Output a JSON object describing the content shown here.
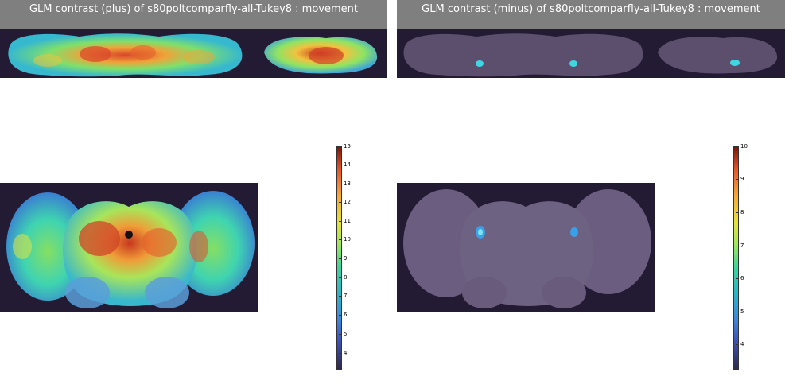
{
  "panels": {
    "plus": {
      "title": "GLM contrast (plus) of s80poltcomparfly-all-Tukey8 : movement",
      "colorbar": {
        "max_label": "15",
        "ticks": [
          "14",
          "13",
          "12",
          "11",
          "10",
          "9",
          "8",
          "7",
          "6",
          "5",
          "4"
        ]
      }
    },
    "minus": {
      "title": "GLM contrast (minus) of s80poltcomparfly-all-Tukey8 : movement",
      "colorbar": {
        "max_label": "10",
        "ticks": [
          "9",
          "8",
          "7",
          "6",
          "5",
          "4"
        ]
      }
    }
  },
  "colors": {
    "background": "#231a33",
    "header": "#7f7f7f",
    "brain_tissue": "#5c4f6e",
    "colormap": [
      "#2e2a4a",
      "#3e4fb0",
      "#3f86d8",
      "#2ab6c8",
      "#3fd49b",
      "#9de85a",
      "#e6e23e",
      "#f6a83a",
      "#e2572a",
      "#9a1e10"
    ]
  }
}
